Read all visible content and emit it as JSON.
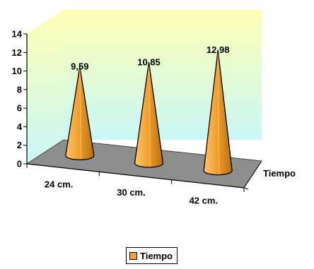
{
  "chart_data": {
    "type": "bar",
    "shape": "cone",
    "three_d": true,
    "categories": [
      "24 cm.",
      "30 cm.",
      "42 cm."
    ],
    "series": [
      {
        "name": "Tiempo",
        "values": [
          9.59,
          10.85,
          12.98
        ]
      }
    ],
    "data_labels": [
      "9,59",
      "10,85",
      "12,98"
    ],
    "y_ticks": [
      "0",
      "2",
      "4",
      "6",
      "8",
      "10",
      "12",
      "14"
    ],
    "ylim": [
      0,
      14
    ],
    "depth_axis_label": "Tiempo",
    "legend": {
      "placement": "bottom",
      "label": "Tiempo"
    },
    "grid": false,
    "colors": {
      "cone_light": "#FFC66E",
      "cone_mid": "#F2A02E",
      "cone_dark": "#B86E0E",
      "wall_top": "#FFFFB4",
      "wall_bottom": "#C8F7F7",
      "floor": "#8E8E8E"
    }
  }
}
